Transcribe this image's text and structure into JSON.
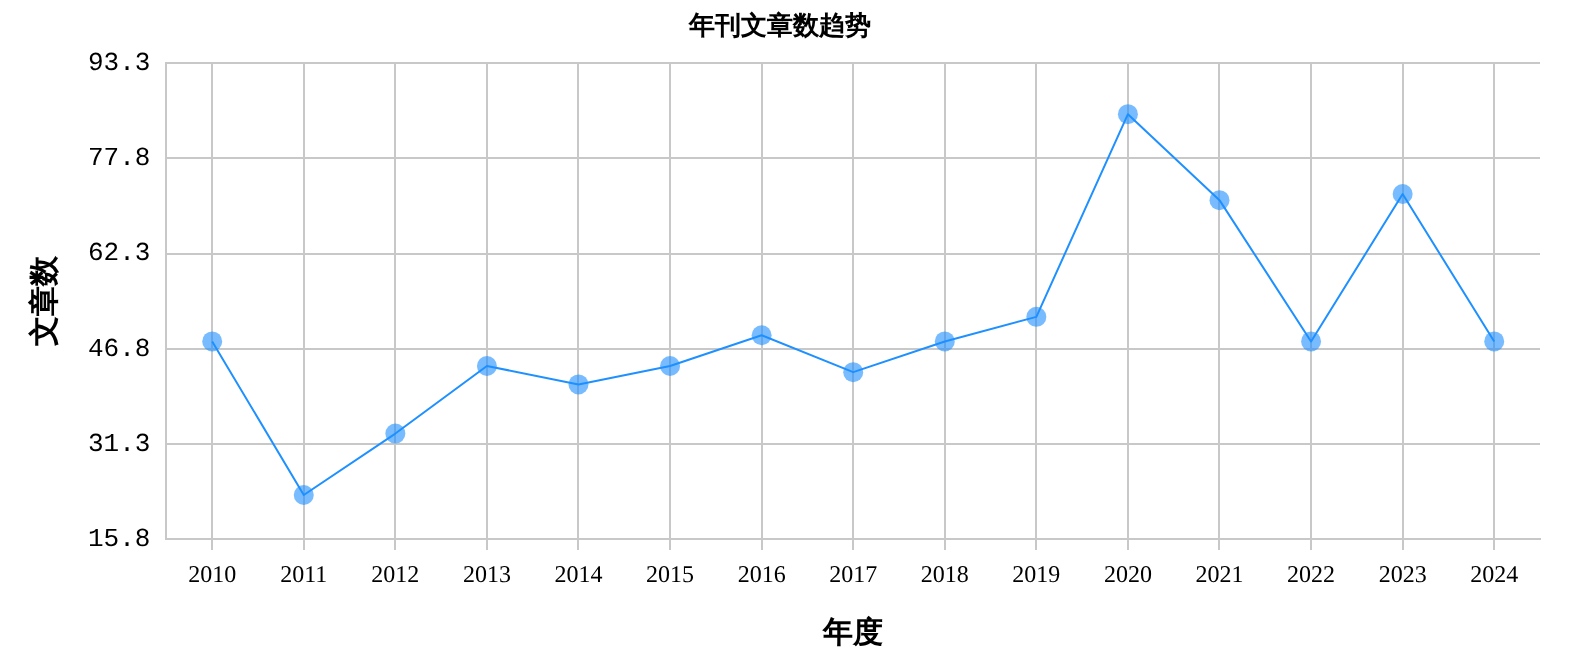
{
  "chart_data": {
    "type": "line",
    "title": "年刊文章数趋势",
    "xlabel": "年度",
    "ylabel": "文章数",
    "categories": [
      "2010",
      "2011",
      "2012",
      "2013",
      "2014",
      "2015",
      "2016",
      "2017",
      "2018",
      "2019",
      "2020",
      "2021",
      "2022",
      "2023",
      "2024"
    ],
    "series": [
      {
        "color": "#1e90ff",
        "values": [
          48,
          23,
          33,
          44,
          41,
          44,
          49,
          43,
          48,
          52,
          85,
          71,
          48,
          72,
          48
        ]
      }
    ],
    "ylim": [
      15.8,
      93.3
    ],
    "yticks": [
      15.8,
      31.3,
      46.8,
      62.3,
      77.8,
      93.3
    ],
    "grid": true,
    "legend": false,
    "marker": "circle",
    "line_style": "solid"
  }
}
